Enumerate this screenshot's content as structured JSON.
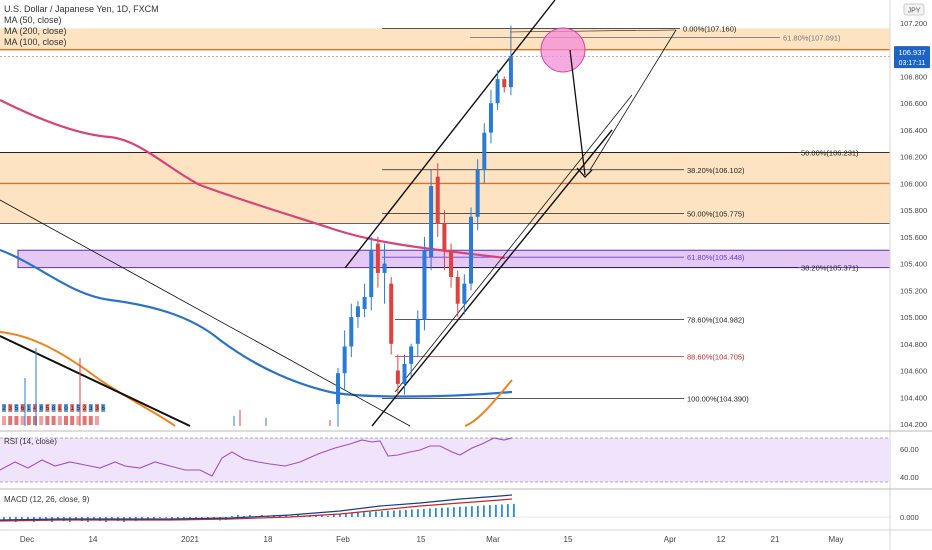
{
  "window": {
    "currency_badge": "JPY"
  },
  "legend": {
    "title": "U.S. Dollar / Japanese Yen, 1D, FXCM",
    "ma50": "MA (50, close)",
    "ma200": "MA (200, close)",
    "ma100": "MA (100, close)"
  },
  "colors": {
    "up": "#2a7bd6",
    "down": "#e0413e",
    "ma50": "#f0831e",
    "ma100": "#2a73c8",
    "ma200": "#d8437a",
    "zone_orange": "#fde3c2",
    "zone_purple": "#e6c8f5",
    "rsi_band": "#efe4fb",
    "rsi_line": "#a24ec7",
    "macd_hist": "#2a8fd6",
    "macd_line": "#c62828",
    "circle": "#f38dd8",
    "price_badge": "#1e63c6"
  },
  "price_axis": {
    "ticks": [
      "107.200",
      "107.000",
      "106.800",
      "106.600",
      "106.400",
      "106.200",
      "106.000",
      "105.800",
      "105.600",
      "105.400",
      "105.200",
      "105.000",
      "104.800",
      "104.600",
      "104.400",
      "104.200"
    ],
    "current_price": "106.937",
    "countdown": "03:17:11"
  },
  "time_axis": {
    "ticks": [
      "Dec",
      "14",
      "2021",
      "18",
      "Feb",
      "15",
      "Mar",
      "15",
      "Apr",
      "12",
      "21",
      "May"
    ]
  },
  "fib_labels": [
    {
      "text": "0.00%(107.160)",
      "value": 107.16,
      "color": "#222"
    },
    {
      "text": "61.80%(107.091)",
      "value": 107.091,
      "color": "#777"
    },
    {
      "text": "50.00%(106.231)",
      "value": 106.231,
      "color": "#222"
    },
    {
      "text": "38.20%(106.102)",
      "value": 106.102,
      "color": "#222"
    },
    {
      "text": "50.00%(105.775)",
      "value": 105.775,
      "color": "#222"
    },
    {
      "text": "61.80%(105.448)",
      "value": 105.448,
      "color": "#6b3fc9"
    },
    {
      "text": "38.20%(105.371)",
      "value": 105.371,
      "color": "#222"
    },
    {
      "text": "78.60%(104.982)",
      "value": 104.982,
      "color": "#222"
    },
    {
      "text": "88.60%(104.705)",
      "value": 104.705,
      "color": "#c62828"
    },
    {
      "text": "100.00%(104.390)",
      "value": 104.39,
      "color": "#222"
    }
  ],
  "rsi": {
    "label": "RSI (14, close)",
    "ticks": [
      "60.00",
      "40.00"
    ]
  },
  "macd": {
    "label": "MACD (12, 26, close, 9)",
    "ticks": [
      "0.000"
    ]
  },
  "chart_data": {
    "type": "candlestick",
    "title": "U.S. Dollar / Japanese Yen, 1D, FXCM",
    "ylim": [
      104.17,
      107.33
    ],
    "candles": [
      {
        "o": 104.35,
        "h": 104.62,
        "l": 104.18,
        "c": 104.58
      },
      {
        "o": 104.58,
        "h": 104.9,
        "l": 104.45,
        "c": 104.78
      },
      {
        "o": 104.78,
        "h": 105.1,
        "l": 104.7,
        "c": 105.0
      },
      {
        "o": 105.0,
        "h": 105.12,
        "l": 104.92,
        "c": 105.08
      },
      {
        "o": 105.06,
        "h": 105.25,
        "l": 105.0,
        "c": 105.15
      },
      {
        "o": 105.15,
        "h": 105.6,
        "l": 105.05,
        "c": 105.5
      },
      {
        "o": 105.55,
        "h": 105.6,
        "l": 105.22,
        "c": 105.33
      },
      {
        "o": 105.33,
        "h": 105.55,
        "l": 105.1,
        "c": 105.4
      },
      {
        "o": 105.25,
        "h": 105.3,
        "l": 104.72,
        "c": 104.8
      },
      {
        "o": 104.6,
        "h": 104.72,
        "l": 104.4,
        "c": 104.5
      },
      {
        "o": 104.5,
        "h": 104.72,
        "l": 104.42,
        "c": 104.65
      },
      {
        "o": 104.65,
        "h": 104.8,
        "l": 104.55,
        "c": 104.78
      },
      {
        "o": 104.8,
        "h": 105.05,
        "l": 104.7,
        "c": 104.98
      },
      {
        "o": 104.98,
        "h": 105.6,
        "l": 104.9,
        "c": 105.5
      },
      {
        "o": 105.45,
        "h": 106.1,
        "l": 105.35,
        "c": 105.98
      },
      {
        "o": 106.05,
        "h": 106.15,
        "l": 105.6,
        "c": 105.7
      },
      {
        "o": 105.7,
        "h": 105.8,
        "l": 105.35,
        "c": 105.5
      },
      {
        "o": 105.5,
        "h": 105.55,
        "l": 105.22,
        "c": 105.3
      },
      {
        "o": 105.3,
        "h": 105.35,
        "l": 105.0,
        "c": 105.1
      },
      {
        "o": 105.1,
        "h": 105.32,
        "l": 105.02,
        "c": 105.25
      },
      {
        "o": 105.25,
        "h": 105.82,
        "l": 105.2,
        "c": 105.75
      },
      {
        "o": 105.75,
        "h": 106.18,
        "l": 105.65,
        "c": 106.1
      },
      {
        "o": 106.1,
        "h": 106.45,
        "l": 106.0,
        "c": 106.38
      },
      {
        "o": 106.38,
        "h": 106.7,
        "l": 106.3,
        "c": 106.6
      },
      {
        "o": 106.6,
        "h": 106.85,
        "l": 106.55,
        "c": 106.78
      },
      {
        "o": 106.78,
        "h": 106.8,
        "l": 106.68,
        "c": 106.72
      },
      {
        "o": 106.72,
        "h": 107.18,
        "l": 106.66,
        "c": 106.95
      }
    ]
  }
}
